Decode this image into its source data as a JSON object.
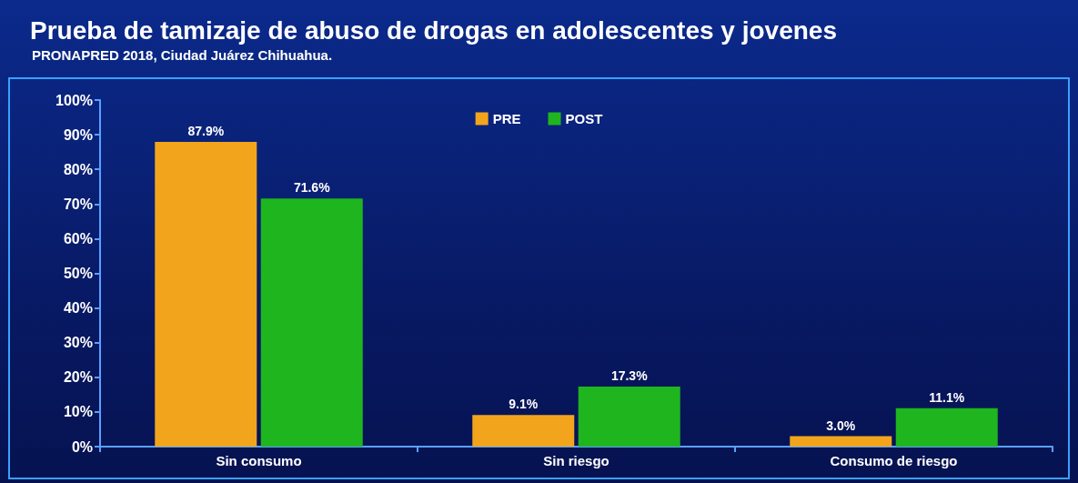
{
  "chart_data": {
    "type": "bar",
    "title": "Prueba de tamizaje de abuso de drogas en adolescentes y jovenes",
    "subtitle": "PRONAPRED 2018, Ciudad Juárez Chihuahua.",
    "categories": [
      "Sin consumo",
      "Sin riesgo",
      "Consumo de riesgo"
    ],
    "series": [
      {
        "name": "PRE",
        "color": "#f2a51c",
        "values": [
          87.9,
          9.1,
          3.0
        ],
        "value_labels": [
          "87.9%",
          "9.1%",
          "3.0%"
        ]
      },
      {
        "name": "POST",
        "color": "#1fb51f",
        "values": [
          71.6,
          17.3,
          11.1
        ],
        "value_labels": [
          "71.6%",
          "17.3%",
          "11.1%"
        ]
      }
    ],
    "ylim": [
      0,
      100
    ],
    "yticks": [
      {
        "value": 0,
        "label": "0%"
      },
      {
        "value": 10,
        "label": "10%"
      },
      {
        "value": 20,
        "label": "20%"
      },
      {
        "value": 30,
        "label": "30%"
      },
      {
        "value": 40,
        "label": "40%"
      },
      {
        "value": 50,
        "label": "50%"
      },
      {
        "value": 60,
        "label": "60%"
      },
      {
        "value": 70,
        "label": "70%"
      },
      {
        "value": 80,
        "label": "80%"
      },
      {
        "value": 90,
        "label": "90%"
      },
      {
        "value": 100,
        "label": "100%"
      }
    ],
    "grid": false,
    "legend": "top"
  }
}
